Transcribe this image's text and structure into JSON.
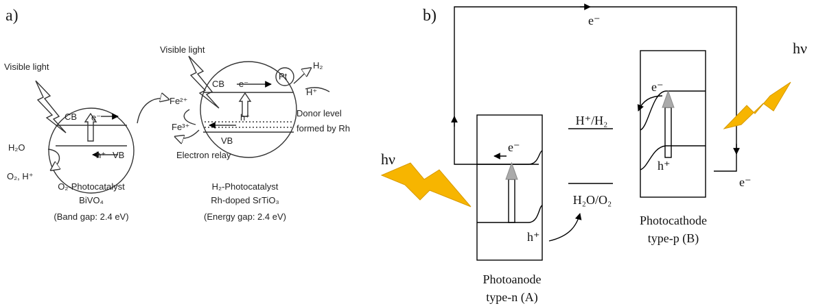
{
  "panel_a": {
    "label": "a)",
    "texts": [
      "Visible light",
      "CB",
      "e⁻",
      "h⁺",
      "VB",
      "H₂O",
      "O₂, H⁺",
      "O₂-Photocatalyst",
      "BiVO₄",
      "(Band gap: 2.4 eV)",
      "Visible light",
      "Fe²⁺",
      "Fe³⁺",
      "Electron relay",
      "CB",
      "e⁻",
      "Pt",
      "H₂",
      "H⁺",
      "h⁺",
      "VB",
      "Donor level",
      "formed by Rh",
      "H₂-Photocatalyst",
      "Rh-doped SrTiO₃",
      "(Energy gap: 2.4 eV)"
    ]
  },
  "panel_b": {
    "label": "b)",
    "texts": [
      "e⁻",
      "hν",
      "hν",
      "e⁻",
      "h⁺",
      "H⁺/H₂",
      "H₂O/O₂",
      "e⁻",
      "h⁺",
      "e⁻",
      "Photocathode",
      "type-p (B)",
      "Photoanode",
      "type-n (A)"
    ]
  }
}
